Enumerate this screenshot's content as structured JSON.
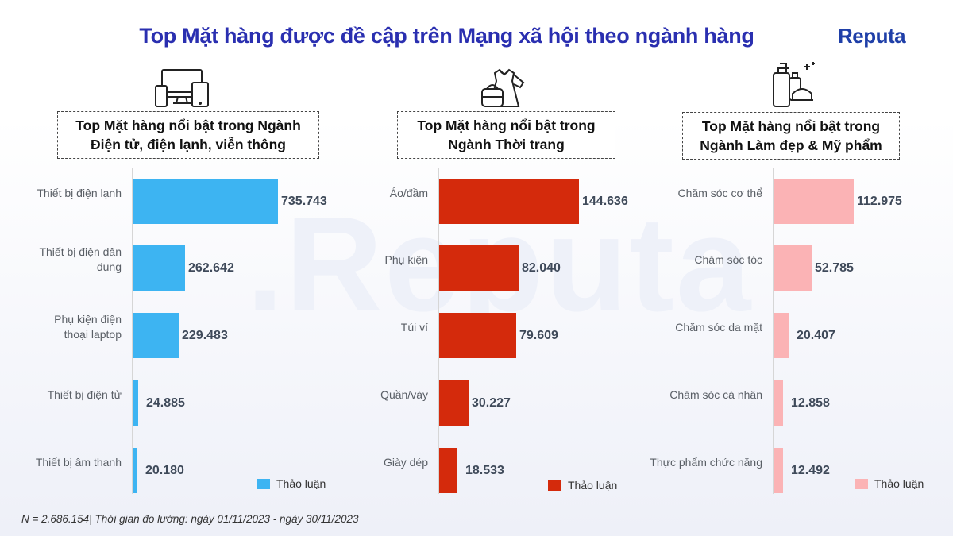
{
  "title": "Top Mặt hàng được đề cập trên Mạng xã hội theo ngành hàng",
  "logo": {
    "text": "Reputa",
    "icon": "reputa-logo"
  },
  "watermark": ".Reputa",
  "footnote": "N = 2.686.154| Thời gian đo lường: ngày 01/11/2023 - ngày 30/11/2023",
  "chart_data": [
    {
      "type": "bar",
      "orientation": "horizontal",
      "icon": "electronics-devices-icon",
      "title": [
        "Top Mặt hàng nổi bật trong Ngành",
        "Điện tử, điện lạnh, viễn thông"
      ],
      "categories": [
        [
          "Thiết bị điện lạnh"
        ],
        [
          "Thiết bị điện dân",
          "dụng"
        ],
        [
          "Phụ kiện điện",
          "thoại laptop"
        ],
        [
          "Thiết bị điện tử"
        ],
        [
          "Thiết bị âm thanh"
        ]
      ],
      "series": [
        {
          "name": "Thảo luận",
          "color": "#3db4f2",
          "values": [
            735743,
            262642,
            229483,
            24885,
            20180
          ]
        }
      ],
      "labels": [
        "735.743",
        "262.642",
        "229.483",
        "24.885",
        "20.180"
      ],
      "grid": false,
      "legend": "bottom-right"
    },
    {
      "type": "bar",
      "orientation": "horizontal",
      "icon": "fashion-clothing-icon",
      "title": [
        "Top Mặt hàng nổi bật trong",
        "Ngành Thời trang"
      ],
      "categories": [
        [
          "Áo/đầm"
        ],
        [
          "Phụ kiện"
        ],
        [
          "Túi ví"
        ],
        [
          "Quần/váy"
        ],
        [
          "Giày dép"
        ]
      ],
      "series": [
        {
          "name": "Thảo luận",
          "color": "#d42a0c",
          "values": [
            144636,
            82040,
            79609,
            30227,
            18533
          ]
        }
      ],
      "labels": [
        "144.636",
        "82.040",
        "79.609",
        "30.227",
        "18.533"
      ],
      "grid": false,
      "legend": "bottom-right"
    },
    {
      "type": "bar",
      "orientation": "horizontal",
      "icon": "cosmetics-bottles-icon",
      "title": [
        "Top Mặt hàng nổi bật trong",
        "Ngành Làm đẹp & Mỹ phẩm"
      ],
      "categories": [
        [
          "Chăm sóc cơ thể"
        ],
        [
          "Chăm sóc tóc"
        ],
        [
          "Chăm sóc da mặt"
        ],
        [
          "Chăm sóc cá nhân"
        ],
        [
          "Thực phẩm chức năng"
        ]
      ],
      "series": [
        {
          "name": "Thảo luận",
          "color": "#fbb3b5",
          "values": [
            112975,
            52785,
            20407,
            12858,
            12492
          ]
        }
      ],
      "labels": [
        "112.975",
        "52.785",
        "20.407",
        "12.858",
        "12.492"
      ],
      "grid": false,
      "legend": "bottom-right"
    }
  ]
}
